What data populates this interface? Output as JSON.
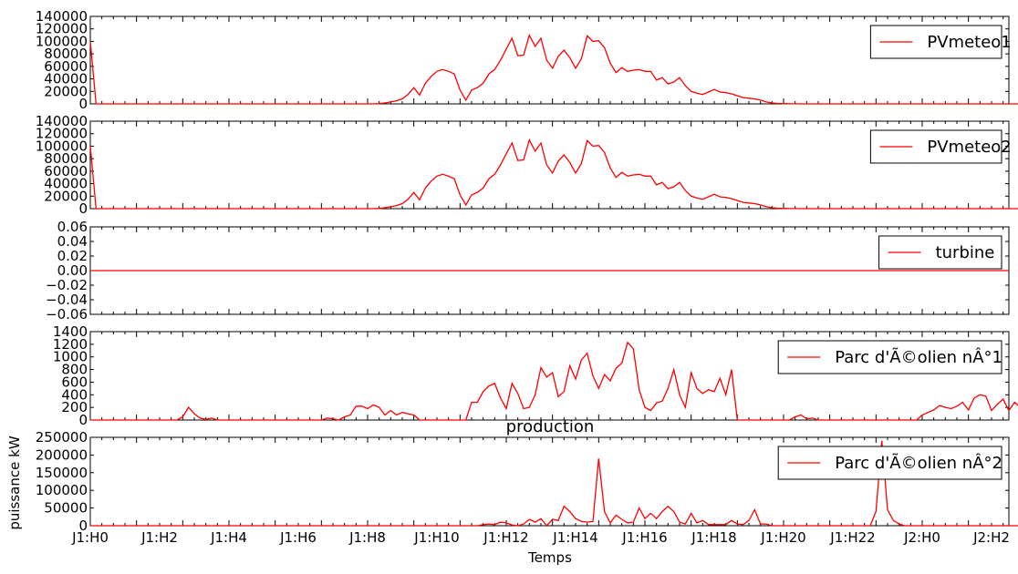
{
  "chart_data": [
    {
      "type": "line",
      "ylim": [
        0,
        140000
      ],
      "yticks": [
        "0",
        "20000",
        "40000",
        "60000",
        "80000",
        "100000",
        "120000",
        "140000"
      ],
      "ytick_values": [
        0,
        20000,
        40000,
        60000,
        80000,
        100000,
        120000,
        140000
      ],
      "legend": "top-right",
      "series": [
        {
          "name": "PVmeteo1",
          "color": "#ff0000",
          "values": [
            100000,
            0,
            0,
            0,
            0,
            0,
            0,
            0,
            0,
            0,
            0,
            0,
            0,
            0,
            0,
            0,
            0,
            0,
            0,
            0,
            0,
            0,
            0,
            0,
            0,
            0,
            0,
            0,
            0,
            0,
            0,
            0,
            0,
            0,
            0,
            0,
            0,
            0,
            0,
            0,
            0,
            0,
            0,
            0,
            0,
            0,
            0,
            0,
            0,
            0,
            500,
            1500,
            3000,
            5000,
            8000,
            15000,
            26000,
            14000,
            33000,
            44000,
            52000,
            55000,
            52000,
            48000,
            22000,
            6000,
            22000,
            26000,
            33000,
            48000,
            55000,
            70000,
            88000,
            105000,
            77000,
            78000,
            110000,
            92000,
            105000,
            70000,
            57000,
            76000,
            86000,
            74000,
            57000,
            72000,
            109000,
            100000,
            101000,
            90000,
            65000,
            50000,
            58000,
            52000,
            54000,
            55000,
            52000,
            52000,
            38000,
            42000,
            32000,
            35000,
            42000,
            29000,
            20000,
            17000,
            15000,
            19000,
            23000,
            19000,
            18000,
            16000,
            13000,
            10000,
            9000,
            8000,
            6000,
            3000,
            1500,
            800,
            400,
            200,
            100,
            50,
            0,
            0,
            0,
            0,
            0,
            0,
            0,
            0,
            0,
            0,
            0,
            0,
            0,
            0,
            0,
            0,
            0,
            0,
            0,
            0,
            0,
            0,
            0,
            0,
            0,
            0,
            0,
            0,
            0,
            0,
            0,
            0,
            0,
            0,
            0,
            0,
            0,
            0,
            0,
            0,
            0,
            0,
            0,
            0,
            0,
            0,
            0,
            0,
            0,
            0,
            0,
            0
          ]
        }
      ]
    },
    {
      "type": "line",
      "ylim": [
        0,
        140000
      ],
      "yticks": [
        "0",
        "20000",
        "40000",
        "60000",
        "80000",
        "100000",
        "120000",
        "140000"
      ],
      "ytick_values": [
        0,
        20000,
        40000,
        60000,
        80000,
        100000,
        120000,
        140000
      ],
      "legend": "top-right",
      "series": [
        {
          "name": "PVmeteo2",
          "color": "#ff0000",
          "values": [
            100000,
            0,
            0,
            0,
            0,
            0,
            0,
            0,
            0,
            0,
            0,
            0,
            0,
            0,
            0,
            0,
            0,
            0,
            0,
            0,
            0,
            0,
            0,
            0,
            0,
            0,
            0,
            0,
            0,
            0,
            0,
            0,
            0,
            0,
            0,
            0,
            0,
            0,
            0,
            0,
            0,
            0,
            0,
            0,
            0,
            0,
            0,
            0,
            0,
            0,
            500,
            1500,
            3000,
            5000,
            8000,
            15000,
            26000,
            14000,
            33000,
            44000,
            52000,
            55000,
            52000,
            48000,
            22000,
            6000,
            22000,
            26000,
            33000,
            48000,
            55000,
            70000,
            88000,
            105000,
            77000,
            78000,
            110000,
            92000,
            105000,
            70000,
            57000,
            76000,
            86000,
            74000,
            57000,
            72000,
            109000,
            100000,
            101000,
            90000,
            65000,
            50000,
            58000,
            52000,
            54000,
            55000,
            52000,
            52000,
            38000,
            42000,
            32000,
            35000,
            42000,
            29000,
            20000,
            17000,
            15000,
            19000,
            23000,
            19000,
            18000,
            16000,
            13000,
            10000,
            9000,
            8000,
            6000,
            3000,
            1500,
            800,
            400,
            200,
            100,
            50,
            0,
            0,
            0,
            0,
            0,
            0,
            0,
            0,
            0,
            0,
            0,
            0,
            0,
            0,
            0,
            0,
            0,
            0,
            0,
            0,
            0,
            0,
            0,
            0,
            0,
            0,
            0,
            0,
            0,
            0,
            0,
            0,
            0,
            0,
            0,
            0,
            0,
            0,
            0,
            0,
            0,
            0,
            0,
            0,
            0,
            0,
            0,
            0,
            0,
            0,
            0,
            0
          ]
        }
      ]
    },
    {
      "type": "line",
      "ylim": [
        -0.06,
        0.06
      ],
      "yticks": [
        "−0.06",
        "−0.04",
        "−0.02",
        "0.00",
        "0.02",
        "0.04",
        "0.06"
      ],
      "ytick_values": [
        -0.06,
        -0.04,
        -0.02,
        0,
        0.02,
        0.04,
        0.06
      ],
      "legend": "top-right",
      "series": [
        {
          "name": "turbine",
          "color": "#ff0000",
          "values": [
            0,
            0
          ]
        }
      ]
    },
    {
      "type": "line",
      "ylim": [
        0,
        1400
      ],
      "yticks": [
        "0",
        "200",
        "400",
        "600",
        "800",
        "1000",
        "1200",
        "1400"
      ],
      "ytick_values": [
        0,
        200,
        400,
        600,
        800,
        1000,
        1200,
        1400
      ],
      "legend": "top-right",
      "series": [
        {
          "name": "Parc d'Ã©olien nÂ°1",
          "color": "#ff0000",
          "values": [
            0,
            0,
            0,
            0,
            0,
            0,
            0,
            0,
            0,
            0,
            0,
            0,
            0,
            0,
            0,
            0,
            50,
            200,
            100,
            30,
            10,
            30,
            0,
            0,
            0,
            0,
            0,
            0,
            0,
            0,
            0,
            0,
            0,
            0,
            0,
            0,
            0,
            0,
            0,
            0,
            0,
            30,
            20,
            0,
            50,
            80,
            220,
            220,
            180,
            240,
            200,
            80,
            150,
            80,
            120,
            100,
            80,
            0,
            0,
            0,
            0,
            0,
            0,
            0,
            0,
            0,
            280,
            280,
            450,
            540,
            580,
            350,
            180,
            580,
            420,
            180,
            200,
            400,
            830,
            680,
            750,
            370,
            450,
            860,
            650,
            950,
            1060,
            700,
            500,
            720,
            620,
            820,
            900,
            1230,
            1130,
            480,
            200,
            150,
            270,
            300,
            500,
            800,
            400,
            200,
            750,
            500,
            420,
            480,
            450,
            660,
            400,
            800,
            0,
            0,
            0,
            0,
            0,
            0,
            0,
            0,
            0,
            0,
            50,
            80,
            20,
            30,
            0,
            0,
            0,
            0,
            0,
            0,
            0,
            0,
            0,
            0,
            0,
            0,
            0,
            0,
            0,
            0,
            0,
            0,
            80,
            120,
            160,
            230,
            200,
            180,
            220,
            280,
            160,
            350,
            400,
            380,
            150,
            250,
            330,
            150,
            280,
            200,
            230,
            200,
            220,
            180,
            200,
            340,
            100,
            20,
            0,
            0
          ]
        }
      ]
    },
    {
      "type": "line",
      "title": "production",
      "xlabel": "Temps",
      "ylabel": "puissance kW",
      "ylim": [
        0,
        250000
      ],
      "yticks": [
        "0",
        "50000",
        "100000",
        "150000",
        "200000",
        "250000"
      ],
      "ytick_values": [
        0,
        50000,
        100000,
        150000,
        200000,
        250000
      ],
      "x_tick_labels": [
        "J1:H0",
        "J1:H2",
        "J1:H4",
        "J1:H6",
        "J1:H8",
        "J1:H10",
        "J1:H12",
        "J1:H14",
        "J1:H16",
        "J1:H18",
        "J1:H20",
        "J1:H22",
        "J2:H0",
        "J2:H2"
      ],
      "legend": "top-right",
      "series": [
        {
          "name": "Parc d'Ã©olien nÂ°2",
          "color": "#ff0000",
          "values": [
            0,
            0,
            0,
            0,
            0,
            0,
            0,
            0,
            0,
            0,
            0,
            0,
            0,
            0,
            0,
            0,
            0,
            0,
            0,
            0,
            0,
            0,
            0,
            0,
            0,
            0,
            0,
            0,
            0,
            0,
            0,
            0,
            0,
            0,
            0,
            0,
            0,
            0,
            0,
            0,
            0,
            0,
            0,
            0,
            0,
            0,
            0,
            0,
            0,
            0,
            0,
            0,
            0,
            0,
            0,
            0,
            0,
            0,
            0,
            0,
            0,
            0,
            0,
            0,
            0,
            0,
            0,
            0,
            3000,
            5000,
            3000,
            10000,
            8000,
            2000,
            0,
            5000,
            18000,
            10000,
            20000,
            0,
            18000,
            15000,
            55000,
            40000,
            20000,
            12000,
            10000,
            12000,
            190000,
            40000,
            8000,
            30000,
            18000,
            8000,
            10000,
            50000,
            20000,
            35000,
            20000,
            40000,
            55000,
            40000,
            10000,
            5000,
            35000,
            8000,
            15000,
            3000,
            3000,
            3000,
            3000,
            15000,
            5000,
            3000,
            15000,
            45000,
            5000,
            5000,
            0,
            0,
            0,
            0,
            0,
            0,
            0,
            0,
            0,
            0,
            0,
            0,
            0,
            0,
            0,
            0,
            0,
            0,
            40000,
            240000,
            45000,
            15000,
            5000,
            0,
            0,
            0,
            0,
            0,
            0,
            0,
            0,
            0,
            0,
            0,
            0,
            0,
            0,
            0,
            0,
            0,
            0,
            0,
            0,
            0,
            0,
            0,
            0,
            0,
            0,
            0,
            0,
            0,
            0,
            0,
            0,
            0,
            0,
            0,
            0,
            0,
            0,
            0,
            0,
            0,
            0,
            0,
            0,
            0,
            0,
            0
          ]
        }
      ]
    }
  ]
}
